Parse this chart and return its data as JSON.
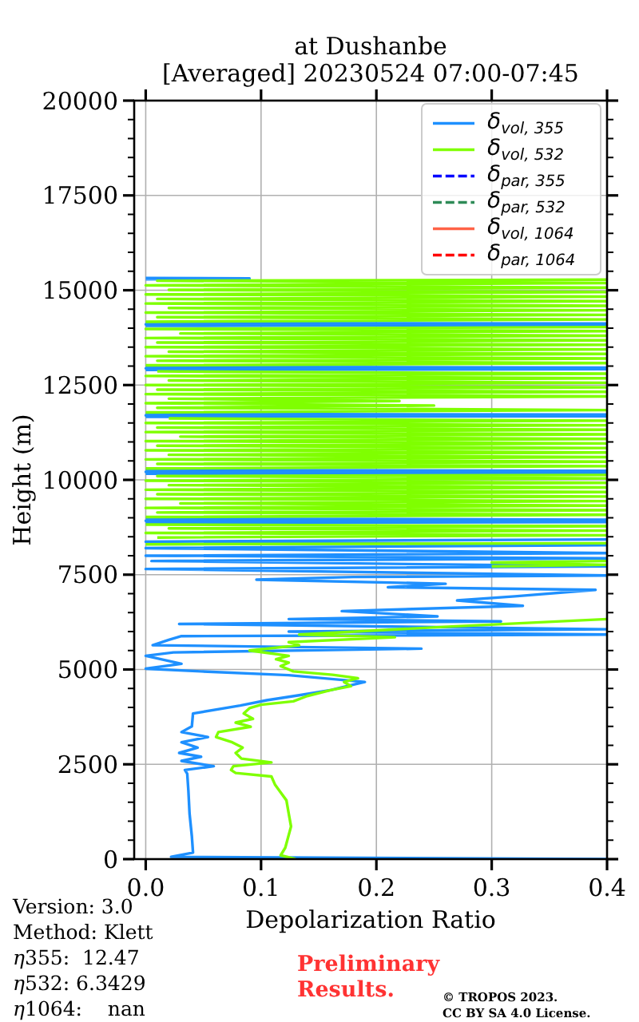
{
  "chart_data": {
    "type": "line",
    "title": "at Dushanbe\n[Averaged] 20230524 07:00-07:45",
    "xlabel": "Depolarization Ratio",
    "ylabel": "Height (m)",
    "xlim": [
      -0.01,
      0.4
    ],
    "xticks": [
      {
        "value": 0,
        "label": "0.0"
      },
      0.1,
      0.2,
      0.3,
      0.4
    ],
    "ylim": [
      0,
      20000
    ],
    "yticks": [
      0,
      {
        "value": 500,
        "label": null
      },
      {
        "value": 1000,
        "label": null
      },
      {
        "value": 1500,
        "label": null
      },
      {
        "value": 2000,
        "label": null
      },
      2500,
      {
        "value": 3000,
        "label": null
      },
      {
        "value": 3500,
        "label": null
      },
      {
        "value": 4000,
        "label": null
      },
      {
        "value": 4500,
        "label": null
      },
      5000,
      {
        "value": 5500,
        "label": null
      },
      {
        "value": 6000,
        "label": null
      },
      {
        "value": 6500,
        "label": null
      },
      {
        "value": 7000,
        "label": null
      },
      7500,
      {
        "value": 8000,
        "label": null
      },
      {
        "value": 8500,
        "label": null
      },
      {
        "value": 9000,
        "label": null
      },
      {
        "value": 9500,
        "label": null
      },
      10000,
      {
        "value": 10500,
        "label": null
      },
      {
        "value": 11000,
        "label": null
      },
      {
        "value": 11500,
        "label": null
      },
      {
        "value": 12000,
        "label": null
      },
      12500,
      {
        "value": 13000,
        "label": null
      },
      {
        "value": 13500,
        "label": null
      },
      {
        "value": 14000,
        "label": null
      },
      {
        "value": 14500,
        "label": null
      },
      15000,
      {
        "value": 15500,
        "label": null
      },
      {
        "value": 16000,
        "label": null
      },
      {
        "value": 16500,
        "label": null
      },
      {
        "value": 17000,
        "label": null
      },
      17500,
      {
        "value": 18000,
        "label": null
      },
      {
        "value": 18500,
        "label": null
      },
      {
        "value": 19000,
        "label": null
      },
      {
        "value": 19500,
        "label": null
      },
      20000
    ],
    "grid": true,
    "legend": "top right",
    "series": [
      {
        "name": "δ$_{vol, 355}$",
        "color": "#1e90ff",
        "line_style": "solid",
        "x": [
          0.4,
          0.022,
          0.041,
          0.04,
          0.038,
          0.037,
          0.036,
          0.034,
          0.059,
          0.031,
          0.048,
          0.029,
          0.045,
          0.031,
          0.054,
          0.031,
          0.04,
          0.041,
          0.082,
          0.105,
          0.133,
          0.161,
          0.17,
          0.19,
          0.165,
          0.124,
          0.048,
          0.0,
          0.031,
          0.0,
          0.024,
          0.239,
          0.006,
          0.02,
          0.031,
          0.4,
          0.124,
          0.4,
          0.029,
          0.308,
          0.124,
          0.253,
          0.17,
          0.327,
          0.27,
          0.32,
          0.39,
          0.21,
          0.26,
          0.096,
          0.18,
          0.4,
          0.0,
          0.4,
          0.005,
          0.4,
          0.0,
          0.4,
          0.0,
          0.4,
          0.0,
          0.4,
          null,
          0.0,
          0.4,
          0.0,
          0.4,
          0.0,
          null,
          0.0,
          0.4,
          0.0,
          0.4,
          0.0,
          null,
          0.0,
          0.4,
          0.0,
          0.4,
          0.0,
          null,
          0.0,
          0.4,
          0.0,
          0.4,
          0.0,
          null,
          0.0,
          0.4,
          0.0,
          0.4,
          0.0,
          null,
          0.0,
          0.09,
          0.0
        ],
        "values": [
          0,
          60,
          170,
          600,
          1200,
          1800,
          2250,
          2350,
          2450,
          2590,
          2700,
          2800,
          2940,
          3080,
          3220,
          3350,
          3500,
          3840,
          4050,
          4190,
          4320,
          4460,
          4530,
          4670,
          4740,
          4850,
          4950,
          5020,
          5150,
          5360,
          5450,
          5550,
          5640,
          5780,
          5880,
          5920,
          6000,
          6060,
          6200,
          6270,
          6330,
          6400,
          6540,
          6680,
          6820,
          6930,
          7100,
          7170,
          7260,
          7370,
          7440,
          7480,
          7650,
          7720,
          7860,
          7930,
          8000,
          8070,
          8200,
          8280,
          8370,
          8430,
          null,
          8860,
          8890,
          8920,
          8950,
          8980,
          null,
          10160,
          10180,
          10210,
          10240,
          10260,
          null,
          11660,
          11680,
          11700,
          11720,
          11740,
          null,
          12900,
          12920,
          12940,
          12960,
          12980,
          null,
          14060,
          14080,
          14100,
          14120,
          14140,
          null,
          15290,
          15310,
          15320
        ]
      },
      {
        "name": "δ$_{vol, 532}$",
        "color": "#7fff00",
        "line_style": "solid",
        "x": [
          0.13,
          0.117,
          0.121,
          0.126,
          0.124,
          0.122,
          0.116,
          0.112,
          0.109,
          0.078,
          0.074,
          0.076,
          0.109,
          0.083,
          0.078,
          0.084,
          0.075,
          0.061,
          0.063,
          0.091,
          0.078,
          0.093,
          0.085,
          0.09,
          0.1,
          0.128,
          0.14,
          0.161,
          0.178,
          0.172,
          0.184,
          0.162,
          0.128,
          0.117,
          0.124,
          0.113,
          0.124,
          0.09,
          0.133,
          0.124,
          0.216,
          0.133,
          0.262,
          0.4,
          null,
          0.3,
          0.4,
          0.3,
          0.4,
          null,
          0.0,
          0.4,
          null,
          0.01,
          0.4,
          0.0,
          0.4,
          0.02,
          0.4,
          0.0,
          null,
          0.0,
          0.4,
          0.01,
          0.4,
          0.0,
          0.4,
          0.03,
          0.4,
          0.0,
          0.4,
          0.01,
          0.4,
          0.0,
          0.4,
          0.02,
          0.4,
          0.0,
          0.4,
          0.01,
          0.4,
          null,
          0.0,
          0.4,
          0.01,
          0.4,
          0.0,
          0.4,
          0.02,
          0.4,
          0.0,
          0.4,
          0.01,
          0.4,
          0.0,
          0.4,
          0.03,
          0.4,
          0.0,
          0.4,
          0.01,
          0.4,
          0.0,
          0.4,
          0.02,
          null,
          0.0,
          0.4,
          0.01,
          0.25,
          0.0,
          0.22,
          0.02,
          0.4,
          0.0,
          0.4,
          0.01,
          0.4,
          0.0,
          0.4,
          0.02,
          0.4,
          0.0,
          0.4,
          0.01,
          null,
          0.0,
          0.4,
          0.01,
          0.4,
          0.0,
          0.4,
          0.02,
          0.4,
          0.0,
          0.4,
          0.01,
          0.4,
          0.0,
          0.4,
          0.03,
          0.4,
          0.0,
          0.4,
          null,
          0.0,
          0.4,
          0.01,
          0.4,
          0.0,
          0.4,
          0.02,
          0.4,
          0.0,
          0.4,
          0.01,
          0.4,
          0.0,
          0.4,
          0.02,
          0.4,
          0.0,
          0.4,
          0.01,
          0.4
        ],
        "values": [
          0,
          100,
          300,
          860,
          1200,
          1550,
          1800,
          1970,
          2180,
          2270,
          2350,
          2450,
          2550,
          2650,
          2800,
          2940,
          3080,
          3220,
          3350,
          3490,
          3600,
          3700,
          3840,
          3980,
          4070,
          4160,
          4300,
          4460,
          4560,
          4670,
          4770,
          4860,
          4950,
          5090,
          5180,
          5270,
          5360,
          5500,
          5640,
          5720,
          5850,
          5920,
          6130,
          6330,
          null,
          7720,
          7760,
          7820,
          7860,
          null,
          8300,
          8330,
          null,
          8480,
          8540,
          8600,
          8660,
          8720,
          8780,
          8820,
          null,
          9020,
          9080,
          9140,
          9200,
          9260,
          9320,
          9380,
          9440,
          9500,
          9560,
          9620,
          9680,
          9740,
          9800,
          9860,
          9920,
          9980,
          10040,
          10100,
          10130,
          null,
          10300,
          10360,
          10420,
          10480,
          10540,
          10600,
          10660,
          10720,
          10780,
          10840,
          10900,
          10960,
          11020,
          11080,
          11140,
          11200,
          11260,
          11320,
          11380,
          11440,
          11500,
          11560,
          11620,
          null,
          11780,
          11840,
          11900,
          11960,
          12020,
          12080,
          12140,
          12200,
          12260,
          12320,
          12380,
          12440,
          12500,
          12560,
          12620,
          12680,
          12740,
          12800,
          12860,
          null,
          13020,
          13080,
          13140,
          13200,
          13260,
          13320,
          13380,
          13440,
          13500,
          13560,
          13620,
          13680,
          13740,
          13800,
          13860,
          13920,
          13980,
          14030,
          null,
          14170,
          14230,
          14290,
          14350,
          14410,
          14470,
          14530,
          14590,
          14650,
          14710,
          14770,
          14830,
          14890,
          14950,
          15010,
          15070,
          15130,
          15190,
          15250,
          15280
        ]
      },
      {
        "name": "δ$_{par, 355}$",
        "color": "#0000ff",
        "line_style": "dashed"
      },
      {
        "name": "δ$_{par, 532}$",
        "color": "#2e8b57",
        "line_style": "dashed"
      },
      {
        "name": "δ$_{vol, 1064}$",
        "color": "#ff6347",
        "line_style": "solid"
      },
      {
        "name": "δ$_{par, 1064}$",
        "color": "#ff0000",
        "line_style": "dashed"
      }
    ],
    "annotations": [
      "Version: 3.0",
      "Method: Klett",
      "η355:  12.47",
      "η532: 6.3429",
      "η1064:    nan",
      "Preliminary\nResults.",
      "© TROPOS 2023.",
      "CC BY SA 4.0 License."
    ]
  }
}
